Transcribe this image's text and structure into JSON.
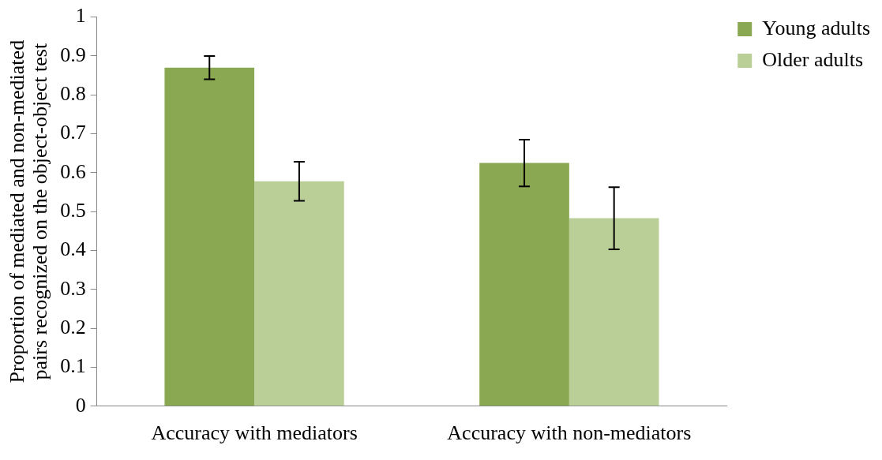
{
  "chart_data": {
    "type": "bar",
    "ylabel": "Proportion of mediated and non-mediated pairs recognized on the object-object test",
    "categories": [
      "Accuracy with mediators",
      "Accuracy with non-mediators"
    ],
    "series": [
      {
        "name": "Young adults",
        "color": "#8aa852",
        "values": [
          0.87,
          0.625
        ],
        "errors": [
          [
            0.84,
            0.9
          ],
          [
            0.565,
            0.685
          ]
        ]
      },
      {
        "name": "Older adults",
        "color": "#bacf98",
        "values": [
          0.578,
          0.483
        ],
        "errors": [
          [
            0.528,
            0.628
          ],
          [
            0.403,
            0.563
          ]
        ]
      }
    ],
    "ylim": [
      0,
      1
    ],
    "yticks": [
      0,
      0.1,
      0.2,
      0.3,
      0.4,
      0.5,
      0.6,
      0.7,
      0.8,
      0.9,
      1
    ],
    "grid": false,
    "legend": "top right"
  }
}
